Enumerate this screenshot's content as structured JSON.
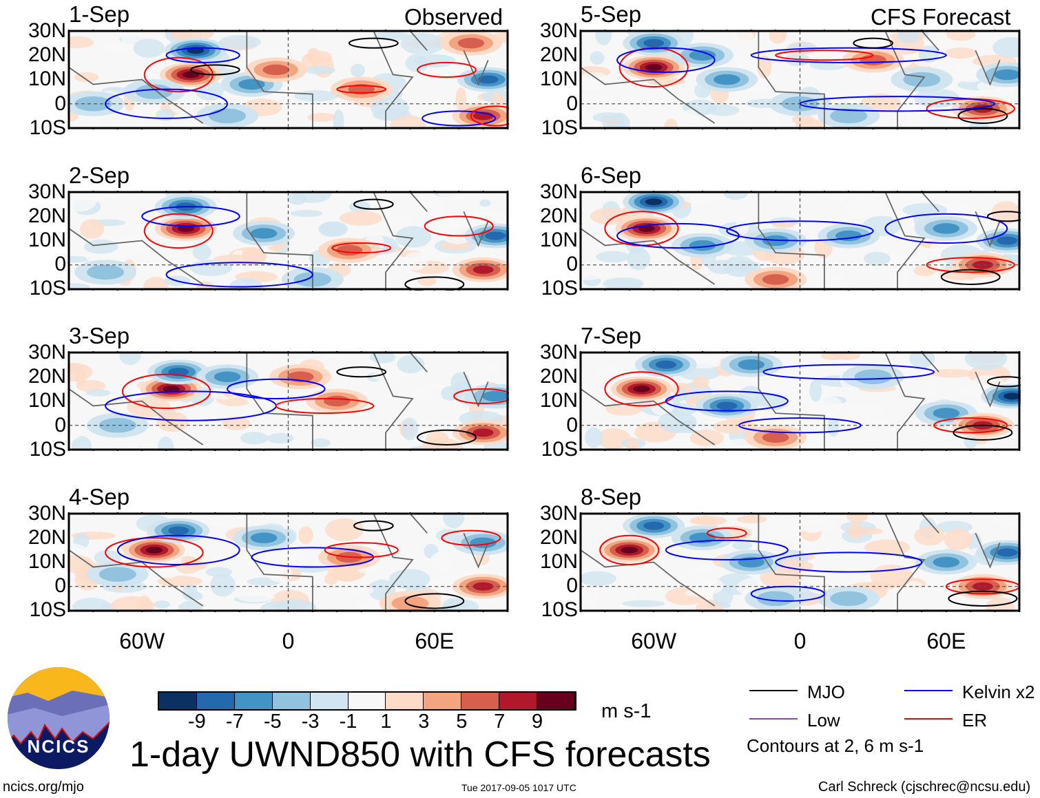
{
  "header": {
    "observed_label": "Observed",
    "forecast_label": "CFS Forecast"
  },
  "axes": {
    "lat_labels": [
      "30N",
      "20N",
      "10N",
      "0",
      "10S"
    ],
    "lon_labels": [
      "60W",
      "0",
      "60E"
    ],
    "lon_range": [
      -90,
      90
    ],
    "lat_range": [
      -10,
      30
    ]
  },
  "chart_data": {
    "type": "heatmap",
    "title": "1-day UWND850 with CFS forecasts",
    "units": "m s-1",
    "colorbar": {
      "ticks": [
        "-9",
        "-7",
        "-5",
        "-3",
        "-1",
        "1",
        "3",
        "5",
        "7",
        "9"
      ],
      "colors": [
        "#0b3162",
        "#2468ad",
        "#4394c4",
        "#91c3de",
        "#d1e5f0",
        "#f7f7f7",
        "#fddbc7",
        "#f3a582",
        "#d6604d",
        "#b1182b",
        "#67001f"
      ]
    },
    "contour_legend": [
      {
        "label": "MJO",
        "color": "#000000"
      },
      {
        "label": "Kelvin x2",
        "color": "#0000ff"
      },
      {
        "label": "Low",
        "color": "#9b3fc9"
      },
      {
        "label": "ER",
        "color": "#ff0000"
      }
    ],
    "contour_note": "Contours at 2, 6 m s-1",
    "panels": [
      {
        "date": "1-Sep",
        "features": [
          [
            -40,
            12,
            10
          ],
          [
            -38,
            22,
            -9
          ],
          [
            -55,
            5,
            -4
          ],
          [
            -15,
            8,
            -6
          ],
          [
            -5,
            14,
            6
          ],
          [
            30,
            6,
            6
          ],
          [
            80,
            -5,
            8
          ],
          [
            82,
            10,
            -8
          ],
          [
            75,
            25,
            5
          ],
          [
            -80,
            0,
            -4
          ],
          [
            -25,
            -5,
            -3
          ]
        ],
        "contours": [
          [
            "ER",
            -45,
            12,
            14,
            7
          ],
          [
            "Kelvin",
            -35,
            20,
            15,
            3
          ],
          [
            "MJO",
            -30,
            14,
            10,
            2
          ],
          [
            "Kelvin",
            -50,
            0,
            25,
            6
          ],
          [
            "ER",
            65,
            14,
            12,
            3
          ],
          [
            "ER",
            30,
            6,
            10,
            1.5
          ],
          [
            "MJO",
            35,
            25,
            10,
            2
          ],
          [
            "Kelvin",
            70,
            -6,
            15,
            3
          ],
          [
            "ER",
            85,
            -5,
            10,
            4
          ]
        ]
      },
      {
        "date": "2-Sep",
        "features": [
          [
            -42,
            15,
            10
          ],
          [
            -42,
            24,
            -8
          ],
          [
            -10,
            13,
            -5
          ],
          [
            25,
            6,
            6
          ],
          [
            80,
            -2,
            8
          ],
          [
            85,
            12,
            -7
          ],
          [
            -75,
            -3,
            -4
          ],
          [
            10,
            -6,
            -3
          ]
        ],
        "contours": [
          [
            "ER",
            -45,
            14,
            14,
            7
          ],
          [
            "Kelvin",
            -40,
            20,
            20,
            4
          ],
          [
            "Kelvin",
            -20,
            -4,
            30,
            5
          ],
          [
            "ER",
            30,
            7,
            12,
            2
          ],
          [
            "ER",
            70,
            16,
            14,
            4
          ],
          [
            "MJO",
            35,
            25,
            8,
            2
          ],
          [
            "MJO",
            60,
            -8,
            12,
            3
          ]
        ]
      },
      {
        "date": "3-Sep",
        "features": [
          [
            -48,
            15,
            10
          ],
          [
            -45,
            22,
            -7
          ],
          [
            -25,
            20,
            -5
          ],
          [
            5,
            20,
            6
          ],
          [
            20,
            10,
            5
          ],
          [
            80,
            -3,
            8
          ],
          [
            85,
            12,
            -6
          ],
          [
            -70,
            0,
            -3
          ]
        ],
        "contours": [
          [
            "ER",
            -50,
            14,
            18,
            7
          ],
          [
            "Kelvin",
            -40,
            8,
            35,
            6
          ],
          [
            "ER",
            15,
            8,
            20,
            3
          ],
          [
            "Kelvin",
            -5,
            15,
            20,
            4
          ],
          [
            "MJO",
            30,
            22,
            10,
            2
          ],
          [
            "MJO",
            65,
            -5,
            12,
            3
          ],
          [
            "ER",
            80,
            12,
            12,
            3
          ]
        ]
      },
      {
        "date": "4-Sep",
        "features": [
          [
            -55,
            15,
            10
          ],
          [
            -45,
            23,
            -7
          ],
          [
            -10,
            20,
            -5
          ],
          [
            25,
            12,
            6
          ],
          [
            80,
            0,
            8
          ],
          [
            80,
            18,
            -6
          ],
          [
            -70,
            5,
            -3
          ],
          [
            50,
            -7,
            4
          ]
        ],
        "contours": [
          [
            "ER",
            -55,
            14,
            20,
            6
          ],
          [
            "Kelvin",
            -45,
            15,
            25,
            6
          ],
          [
            "Kelvin",
            10,
            12,
            25,
            4
          ],
          [
            "ER",
            30,
            15,
            15,
            3
          ],
          [
            "MJO",
            35,
            25,
            8,
            2
          ],
          [
            "MJO",
            60,
            -6,
            12,
            3
          ],
          [
            "ER",
            75,
            20,
            12,
            3
          ]
        ]
      },
      {
        "date": "5-Sep",
        "features": [
          [
            -60,
            15,
            10
          ],
          [
            -60,
            25,
            -8
          ],
          [
            -30,
            10,
            -6
          ],
          [
            -40,
            20,
            -5
          ],
          [
            30,
            18,
            6
          ],
          [
            50,
            10,
            -4
          ],
          [
            75,
            -2,
            7
          ],
          [
            85,
            12,
            -6
          ],
          [
            0,
            0,
            -3
          ],
          [
            20,
            -5,
            -4
          ]
        ],
        "contours": [
          [
            "ER",
            -60,
            15,
            14,
            8
          ],
          [
            "Kelvin",
            -55,
            18,
            20,
            5
          ],
          [
            "Kelvin",
            20,
            20,
            40,
            3
          ],
          [
            "ER",
            10,
            20,
            20,
            2
          ],
          [
            "ER",
            70,
            -2,
            18,
            4
          ],
          [
            "MJO",
            75,
            -5,
            10,
            3
          ],
          [
            "MJO",
            30,
            25,
            8,
            2
          ],
          [
            "Kelvin",
            40,
            0,
            40,
            3
          ]
        ]
      },
      {
        "date": "6-Sep",
        "features": [
          [
            -63,
            15,
            10
          ],
          [
            -60,
            26,
            -9
          ],
          [
            -40,
            8,
            -5
          ],
          [
            -10,
            10,
            -6
          ],
          [
            20,
            12,
            -5
          ],
          [
            60,
            15,
            -5
          ],
          [
            75,
            0,
            7
          ],
          [
            85,
            10,
            -8
          ],
          [
            -10,
            -6,
            5
          ]
        ],
        "contours": [
          [
            "ER",
            -65,
            15,
            15,
            7
          ],
          [
            "Kelvin",
            -50,
            12,
            25,
            5
          ],
          [
            "Kelvin",
            0,
            14,
            30,
            4
          ],
          [
            "Kelvin",
            60,
            15,
            25,
            6
          ],
          [
            "ER",
            70,
            0,
            18,
            3
          ],
          [
            "MJO",
            70,
            -5,
            12,
            3
          ],
          [
            "MJO",
            85,
            20,
            8,
            2
          ]
        ]
      },
      {
        "date": "7-Sep",
        "features": [
          [
            -65,
            15,
            10
          ],
          [
            -55,
            25,
            -8
          ],
          [
            -30,
            8,
            -7
          ],
          [
            -20,
            25,
            -6
          ],
          [
            30,
            20,
            -4
          ],
          [
            60,
            5,
            -5
          ],
          [
            75,
            0,
            7
          ],
          [
            87,
            12,
            -9
          ],
          [
            -10,
            -5,
            6
          ]
        ],
        "contours": [
          [
            "ER",
            -65,
            15,
            15,
            7
          ],
          [
            "Kelvin",
            -30,
            10,
            25,
            4
          ],
          [
            "Kelvin",
            20,
            22,
            35,
            3
          ],
          [
            "Kelvin",
            0,
            0,
            25,
            3
          ],
          [
            "ER",
            70,
            0,
            15,
            3
          ],
          [
            "MJO",
            75,
            -3,
            12,
            3
          ],
          [
            "MJO",
            85,
            18,
            8,
            2
          ]
        ]
      },
      {
        "date": "8-Sep",
        "features": [
          [
            -70,
            15,
            10
          ],
          [
            -60,
            25,
            -8
          ],
          [
            -40,
            20,
            -6
          ],
          [
            -20,
            10,
            -5
          ],
          [
            60,
            10,
            -6
          ],
          [
            85,
            14,
            -8
          ],
          [
            75,
            0,
            8
          ],
          [
            -10,
            -5,
            -4
          ],
          [
            20,
            -5,
            -4
          ]
        ],
        "contours": [
          [
            "ER",
            -70,
            15,
            12,
            6
          ],
          [
            "Kelvin",
            -30,
            15,
            25,
            4
          ],
          [
            "Kelvin",
            20,
            10,
            30,
            4
          ],
          [
            "ER",
            -30,
            22,
            8,
            2
          ],
          [
            "ER",
            75,
            0,
            15,
            3
          ],
          [
            "MJO",
            75,
            -5,
            14,
            3
          ],
          [
            "Kelvin",
            -5,
            -3,
            15,
            3
          ]
        ]
      }
    ]
  },
  "footer": {
    "logo_text": "NCICS",
    "url": "ncics.org/mjo",
    "timestamp": "Tue 2017-09-05 1017 UTC",
    "author": "Carl Schreck (cjschrec@ncsu.edu)"
  }
}
